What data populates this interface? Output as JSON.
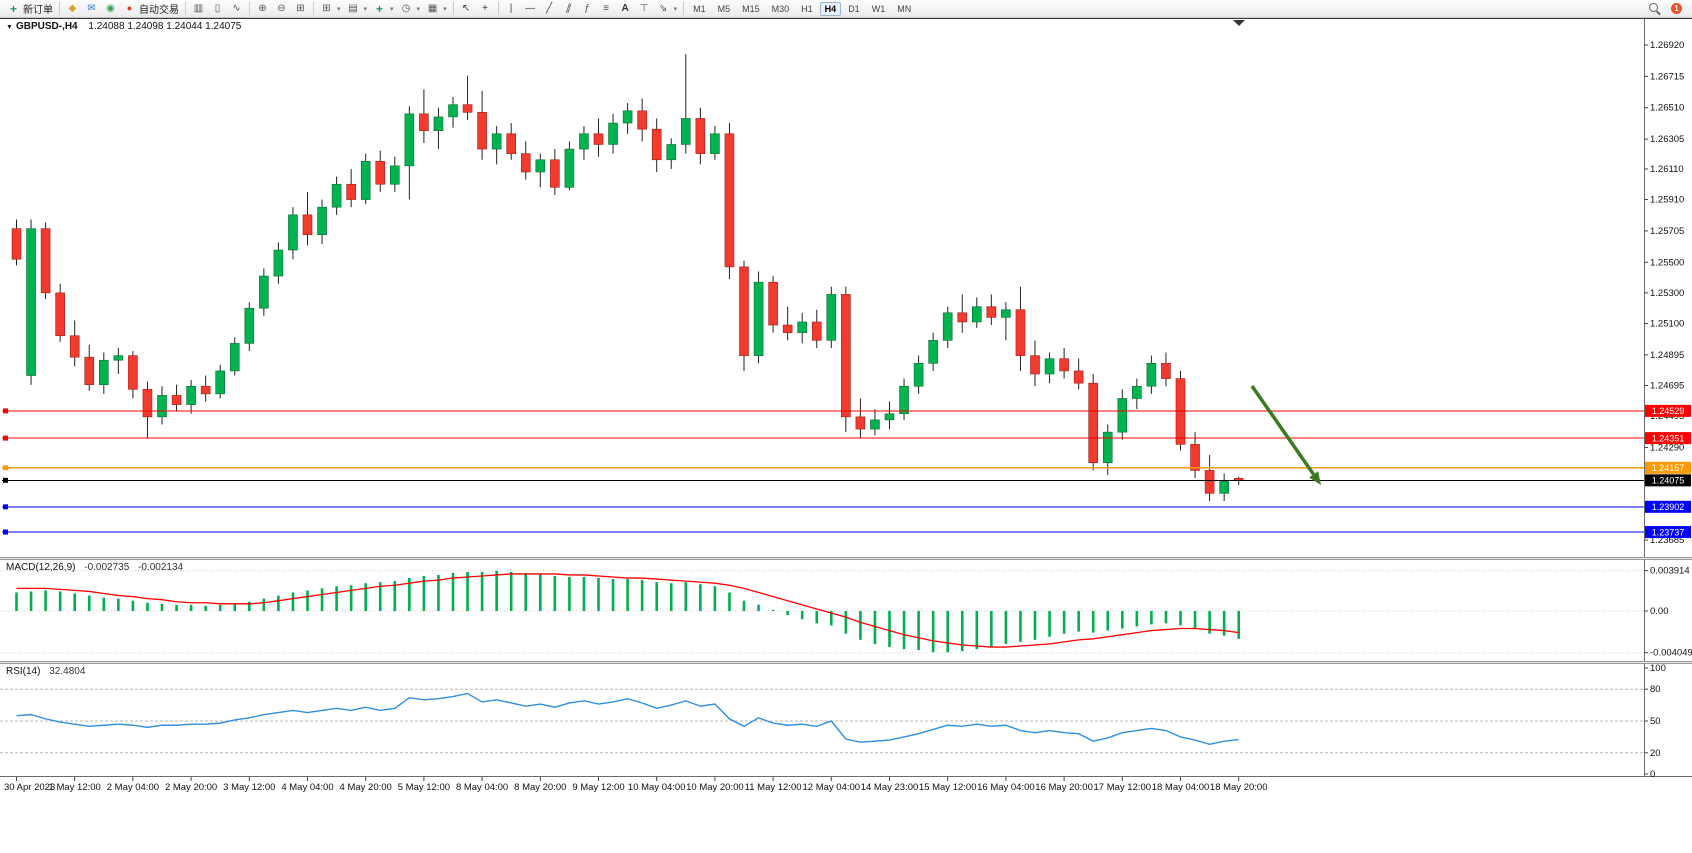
{
  "toolbar": {
    "new_order_label": "新订单",
    "auto_trading_label": "自动交易",
    "timeframes": [
      "M1",
      "M5",
      "M15",
      "M30",
      "H1",
      "H4",
      "D1",
      "W1",
      "MN"
    ],
    "active_timeframe": "H4",
    "notification_badge": "1",
    "items": [
      {
        "type": "button",
        "name": "new-order-button",
        "icon": "new-order-icon",
        "label": "新订单"
      },
      {
        "type": "sep"
      },
      {
        "type": "icon",
        "name": "market-watch-button",
        "icon": "diamond-icon"
      },
      {
        "type": "icon",
        "name": "chat-button",
        "icon": "chat-icon"
      },
      {
        "type": "icon",
        "name": "signals-button",
        "icon": "signal-icon"
      },
      {
        "type": "button",
        "name": "auto-trading-button",
        "icon": "autotrade-icon",
        "label": "自动交易"
      },
      {
        "type": "sep"
      },
      {
        "type": "icon",
        "name": "bar-chart-button",
        "icon": "bars-icon"
      },
      {
        "type": "icon",
        "name": "candlestick-chart-button",
        "icon": "candles-icon"
      },
      {
        "type": "icon",
        "name": "line-chart-button",
        "icon": "linechart-icon"
      },
      {
        "type": "sep"
      },
      {
        "type": "icon",
        "name": "zoom-in-button",
        "icon": "zoom-in-icon"
      },
      {
        "type": "icon",
        "name": "zoom-out-button",
        "icon": "zoom-out-icon"
      },
      {
        "type": "icon",
        "name": "tile-windows-button",
        "icon": "tile-icon"
      },
      {
        "type": "sep"
      },
      {
        "type": "icon",
        "name": "new-chart-button",
        "icon": "new-chart-icon",
        "dropdown": true
      },
      {
        "type": "icon",
        "name": "profiles-button",
        "icon": "profiles-icon",
        "dropdown": true
      },
      {
        "type": "icon",
        "name": "add-indicator-button",
        "icon": "plus-icon",
        "dropdown": true
      },
      {
        "type": "icon",
        "name": "periods-button",
        "icon": "clock-icon",
        "dropdown": true
      },
      {
        "type": "icon",
        "name": "templates-button",
        "icon": "template-icon",
        "dropdown": true
      },
      {
        "type": "sep"
      },
      {
        "type": "icon",
        "name": "cursor-button",
        "icon": "cursor-icon"
      },
      {
        "type": "icon",
        "name": "crosshair-button",
        "icon": "crosshair-icon"
      },
      {
        "type": "sep"
      },
      {
        "type": "icon",
        "name": "vertical-line-button",
        "icon": "vline-icon"
      },
      {
        "type": "icon",
        "name": "horizontal-line-button",
        "icon": "hline-icon"
      },
      {
        "type": "icon",
        "name": "trendline-button",
        "icon": "trendline-icon"
      },
      {
        "type": "icon",
        "name": "channel-button",
        "icon": "channel-icon"
      },
      {
        "type": "icon",
        "name": "fibonacci-button",
        "icon": "fibonacci-icon"
      },
      {
        "type": "icon",
        "name": "shapes-button",
        "icon": "shapes-icon"
      },
      {
        "type": "icon",
        "name": "text-button",
        "icon": "text-icon"
      },
      {
        "type": "icon",
        "name": "label-button",
        "icon": "label-icon"
      },
      {
        "type": "icon",
        "name": "arrows-button",
        "icon": "arrow-tool-icon",
        "dropdown": true
      },
      {
        "type": "sep"
      },
      {
        "type": "timeframes",
        "name": "timeframe-buttons"
      },
      {
        "type": "spacer"
      },
      {
        "type": "icon",
        "name": "search-button",
        "icon": "magnifier-icon"
      },
      {
        "type": "badge",
        "name": "notification-badge"
      }
    ]
  },
  "icons": {
    "new-order-icon": "+",
    "diamond-icon": "◆",
    "chat-icon": "✉",
    "signal-icon": "◉",
    "autotrade-icon": "●",
    "bars-icon": "▥",
    "candles-icon": "▯",
    "linechart-icon": "∿",
    "zoom-in-icon": "⊕",
    "zoom-out-icon": "⊖",
    "tile-icon": "⊞",
    "new-chart-icon": "⊞",
    "profiles-icon": "▤",
    "plus-icon": "+",
    "clock-icon": "◷",
    "template-icon": "▦",
    "cursor-icon": "↖",
    "crosshair-icon": "+",
    "vline-icon": "|",
    "hline-icon": "—",
    "trendline-icon": "╱",
    "channel-icon": "∥",
    "fibonacci-icon": "ƒ",
    "shapes-icon": "≡",
    "text-icon": "A",
    "label-icon": "⊤",
    "arrow-tool-icon": "⇘",
    "magnifier-icon": "",
    "dropdown-caret-icon": "▾",
    "collapse-icon": "▼",
    "shift-marker-icon": "▼"
  },
  "chart_data": {
    "type": "candlestick",
    "symbol": "GBPUSD-",
    "timeframe": "H4",
    "title_display": "GBPUSD-,H4",
    "ohlc_display": "1.24088 1.24098 1.24044 1.24075",
    "y_labels": [
      "1.26920",
      "1.26715",
      "1.26510",
      "1.26305",
      "1.26110",
      "1.25910",
      "1.25705",
      "1.25500",
      "1.25300",
      "1.25100",
      "1.24895",
      "1.24695",
      "1.24495",
      "1.24290",
      "1.24090",
      "1.23885",
      "1.23685"
    ],
    "x_labels": [
      "30 Apr 2023",
      "1 May 12:00",
      "2 May 04:00",
      "2 May 20:00",
      "3 May 12:00",
      "4 May 04:00",
      "4 May 20:00",
      "5 May 12:00",
      "8 May 04:00",
      "8 May 20:00",
      "9 May 12:00",
      "10 May 04:00",
      "10 May 20:00",
      "11 May 12:00",
      "12 May 04:00",
      "14 May 23:00",
      "15 May 12:00",
      "16 May 04:00",
      "16 May 20:00",
      "17 May 12:00",
      "18 May 04:00",
      "18 May 20:00"
    ],
    "colors": {
      "bull": "#00b250",
      "bear": "#f23b2e",
      "wick": "#222222",
      "bull_border": "#0a6e34",
      "bear_border": "#9e1f16"
    },
    "candles": [
      [
        1.2572,
        1.2578,
        1.2548,
        1.2552
      ],
      [
        1.2476,
        1.2578,
        1.247,
        1.2572
      ],
      [
        1.2572,
        1.2576,
        1.2526,
        1.253
      ],
      [
        1.253,
        1.2536,
        1.2498,
        1.2502
      ],
      [
        1.2502,
        1.2512,
        1.2482,
        1.2488
      ],
      [
        1.2488,
        1.2496,
        1.2466,
        1.247
      ],
      [
        1.247,
        1.2491,
        1.2464,
        1.2486
      ],
      [
        1.2486,
        1.2494,
        1.2477,
        1.2489
      ],
      [
        1.2489,
        1.2492,
        1.2461,
        1.2467
      ],
      [
        1.2467,
        1.2472,
        1.2435,
        1.2449
      ],
      [
        1.2449,
        1.2469,
        1.2444,
        1.2463
      ],
      [
        1.2463,
        1.247,
        1.2453,
        1.2457
      ],
      [
        1.2457,
        1.2473,
        1.2451,
        1.2469
      ],
      [
        1.2469,
        1.2476,
        1.2459,
        1.2464
      ],
      [
        1.2464,
        1.2483,
        1.2461,
        1.2479
      ],
      [
        1.2479,
        1.2501,
        1.2476,
        1.2497
      ],
      [
        1.2497,
        1.2524,
        1.2492,
        1.252
      ],
      [
        1.252,
        1.2546,
        1.2515,
        1.2541
      ],
      [
        1.2541,
        1.2563,
        1.2536,
        1.2558
      ],
      [
        1.2558,
        1.2586,
        1.2552,
        1.2581
      ],
      [
        1.2581,
        1.2596,
        1.2561,
        1.2568
      ],
      [
        1.2568,
        1.2591,
        1.2562,
        1.2586
      ],
      [
        1.2586,
        1.2606,
        1.2581,
        1.2601
      ],
      [
        1.2601,
        1.2611,
        1.2586,
        1.2591
      ],
      [
        1.2591,
        1.2621,
        1.2588,
        1.2616
      ],
      [
        1.2616,
        1.2623,
        1.2596,
        1.2601
      ],
      [
        1.2601,
        1.2619,
        1.2596,
        1.2613
      ],
      [
        1.2613,
        1.2652,
        1.2591,
        1.2647
      ],
      [
        1.2647,
        1.2663,
        1.2628,
        1.2636
      ],
      [
        1.2636,
        1.2651,
        1.2624,
        1.2645
      ],
      [
        1.2645,
        1.2658,
        1.2638,
        1.2653
      ],
      [
        1.2653,
        1.2672,
        1.2643,
        1.2648
      ],
      [
        1.2648,
        1.2662,
        1.2617,
        1.2624
      ],
      [
        1.2624,
        1.2639,
        1.2614,
        1.2634
      ],
      [
        1.2634,
        1.2641,
        1.2617,
        1.2621
      ],
      [
        1.2621,
        1.2629,
        1.2604,
        1.2609
      ],
      [
        1.2609,
        1.2621,
        1.2599,
        1.2617
      ],
      [
        1.2617,
        1.2624,
        1.2594,
        1.2599
      ],
      [
        1.2599,
        1.2629,
        1.2597,
        1.2624
      ],
      [
        1.2624,
        1.2639,
        1.2617,
        1.2634
      ],
      [
        1.2634,
        1.2644,
        1.2619,
        1.2627
      ],
      [
        1.2627,
        1.2647,
        1.2621,
        1.2641
      ],
      [
        1.2641,
        1.2654,
        1.2634,
        1.2649
      ],
      [
        1.2649,
        1.2657,
        1.2629,
        1.2637
      ],
      [
        1.2637,
        1.2644,
        1.2609,
        1.2617
      ],
      [
        1.2617,
        1.2631,
        1.2611,
        1.2627
      ],
      [
        1.2627,
        1.2686,
        1.2621,
        1.2644
      ],
      [
        1.2644,
        1.2651,
        1.2614,
        1.2621
      ],
      [
        1.2621,
        1.2639,
        1.2617,
        1.2634
      ],
      [
        1.2634,
        1.2641,
        1.2539,
        1.2547
      ],
      [
        1.2547,
        1.2551,
        1.2479,
        1.2489
      ],
      [
        1.2489,
        1.2544,
        1.2484,
        1.2537
      ],
      [
        1.2537,
        1.2541,
        1.2504,
        1.2509
      ],
      [
        1.2509,
        1.2521,
        1.2499,
        1.2504
      ],
      [
        1.2504,
        1.2517,
        1.2497,
        1.2511
      ],
      [
        1.2511,
        1.2519,
        1.2494,
        1.2499
      ],
      [
        1.2499,
        1.2534,
        1.2494,
        1.2529
      ],
      [
        1.2529,
        1.2534,
        1.2439,
        1.2449
      ],
      [
        1.2449,
        1.2461,
        1.2435,
        1.2441
      ],
      [
        1.2441,
        1.2454,
        1.2437,
        1.2447
      ],
      [
        1.2447,
        1.2459,
        1.2441,
        1.2451
      ],
      [
        1.2451,
        1.2474,
        1.2447,
        1.2469
      ],
      [
        1.2469,
        1.2489,
        1.2464,
        1.2484
      ],
      [
        1.2484,
        1.2504,
        1.2479,
        1.2499
      ],
      [
        1.2499,
        1.2521,
        1.2494,
        1.2517
      ],
      [
        1.2517,
        1.2529,
        1.2504,
        1.2511
      ],
      [
        1.2511,
        1.2527,
        1.2507,
        1.2521
      ],
      [
        1.2521,
        1.2529,
        1.2509,
        1.2514
      ],
      [
        1.2514,
        1.2524,
        1.2499,
        1.2519
      ],
      [
        1.2519,
        1.2534,
        1.2479,
        1.2489
      ],
      [
        1.2489,
        1.2499,
        1.2469,
        1.2477
      ],
      [
        1.2477,
        1.2491,
        1.2471,
        1.2487
      ],
      [
        1.2487,
        1.2494,
        1.2474,
        1.2479
      ],
      [
        1.2479,
        1.2487,
        1.2467,
        1.2471
      ],
      [
        1.2471,
        1.2477,
        1.2414,
        1.2419
      ],
      [
        1.2419,
        1.2444,
        1.2411,
        1.2439
      ],
      [
        1.2439,
        1.2467,
        1.2434,
        1.2461
      ],
      [
        1.2461,
        1.2474,
        1.2454,
        1.2469
      ],
      [
        1.2469,
        1.2489,
        1.2464,
        1.2484
      ],
      [
        1.2484,
        1.2491,
        1.2469,
        1.2474
      ],
      [
        1.2474,
        1.2479,
        1.2427,
        1.2431
      ],
      [
        1.2431,
        1.2439,
        1.2409,
        1.2414
      ],
      [
        1.2414,
        1.2424,
        1.2394,
        1.2399
      ],
      [
        1.2399,
        1.2412,
        1.2394,
        1.2407
      ],
      [
        1.24088,
        1.24098,
        1.24044,
        1.24075
      ]
    ],
    "hlines": [
      {
        "name": "resistance-line-1",
        "price": "1.24529",
        "value": 1.24529,
        "color": "#ff0000"
      },
      {
        "name": "resistance-line-2",
        "price": "1.24351",
        "value": 1.24351,
        "color": "#ff0000"
      },
      {
        "name": "orange-level-line",
        "price": "1.24157",
        "value": 1.24157,
        "color": "#ff9900"
      },
      {
        "name": "current-price-line",
        "price": "1.24075",
        "value": 1.24075,
        "color": "#000000"
      },
      {
        "name": "support-line-1",
        "price": "1.23902",
        "value": 1.23902,
        "color": "#0000ff"
      },
      {
        "name": "support-line-2",
        "price": "1.23737",
        "value": 1.23737,
        "color": "#0000ff"
      }
    ],
    "annotations": {
      "arrow": {
        "color": "#3c7a1e",
        "direction": "down-right"
      }
    },
    "indicators": {
      "macd": {
        "label": "MACD(12,26,9)",
        "value_main": "-0.002735",
        "value_signal": "-0.002134",
        "scale_labels": [
          "0.003914",
          "0.00",
          "-0.004049"
        ],
        "colors": {
          "histogram": "#00b050",
          "signal": "#ff0000"
        },
        "histogram": [
          0.0018,
          0.0019,
          0.002,
          0.0019,
          0.0017,
          0.0015,
          0.0013,
          0.0012,
          0.001,
          0.0008,
          0.0007,
          0.0006,
          0.0006,
          0.0005,
          0.0006,
          0.0007,
          0.0009,
          0.0012,
          0.0015,
          0.0018,
          0.002,
          0.0022,
          0.0024,
          0.0025,
          0.0027,
          0.0028,
          0.0029,
          0.0032,
          0.0034,
          0.0035,
          0.0037,
          0.0038,
          0.0038,
          0.0039,
          0.0038,
          0.0037,
          0.0036,
          0.0034,
          0.0033,
          0.0033,
          0.0032,
          0.0031,
          0.0031,
          0.003,
          0.0028,
          0.0027,
          0.0028,
          0.0026,
          0.0024,
          0.0018,
          0.001,
          0.0006,
          0.0001,
          -0.0004,
          -0.0008,
          -0.0012,
          -0.0014,
          -0.0022,
          -0.0028,
          -0.0032,
          -0.0035,
          -0.0037,
          -0.0038,
          -0.004,
          -0.004,
          -0.0039,
          -0.0037,
          -0.0035,
          -0.0032,
          -0.003,
          -0.0028,
          -0.0025,
          -0.0022,
          -0.002,
          -0.0021,
          -0.0019,
          -0.0017,
          -0.0015,
          -0.0013,
          -0.0012,
          -0.0014,
          -0.0017,
          -0.0022,
          -0.0024,
          -0.0027
        ],
        "signal": [
          0.0022,
          0.0022,
          0.0022,
          0.0021,
          0.002,
          0.0019,
          0.0017,
          0.0015,
          0.0014,
          0.0012,
          0.0011,
          0.0009,
          0.0008,
          0.0008,
          0.0007,
          0.0007,
          0.0007,
          0.0008,
          0.001,
          0.0012,
          0.0014,
          0.0016,
          0.0018,
          0.002,
          0.0022,
          0.0024,
          0.0025,
          0.0027,
          0.0029,
          0.003,
          0.0032,
          0.0033,
          0.0034,
          0.0035,
          0.0036,
          0.0036,
          0.0036,
          0.0036,
          0.0035,
          0.0035,
          0.0034,
          0.0033,
          0.0032,
          0.0032,
          0.0031,
          0.003,
          0.0029,
          0.0028,
          0.0027,
          0.0025,
          0.0022,
          0.0018,
          0.0014,
          0.001,
          0.0006,
          0.0002,
          -0.0002,
          -0.0006,
          -0.0011,
          -0.0015,
          -0.0019,
          -0.0023,
          -0.0026,
          -0.0029,
          -0.0031,
          -0.0033,
          -0.0034,
          -0.0035,
          -0.0035,
          -0.0034,
          -0.0033,
          -0.0032,
          -0.003,
          -0.0028,
          -0.0027,
          -0.0025,
          -0.0023,
          -0.0021,
          -0.0019,
          -0.0018,
          -0.0017,
          -0.0017,
          -0.0018,
          -0.0019,
          -0.0021
        ]
      },
      "rsi": {
        "label": "RSI(14)",
        "value": "32.4804",
        "scale_labels": [
          "100",
          "80",
          "50",
          "20",
          "0"
        ],
        "levels": [
          80,
          50,
          20
        ],
        "color": "#2f8fdd",
        "values": [
          55,
          56,
          52,
          49,
          47,
          45,
          46,
          47,
          46,
          44,
          46,
          46,
          47,
          47,
          48,
          51,
          53,
          56,
          58,
          60,
          58,
          60,
          62,
          60,
          63,
          60,
          62,
          72,
          70,
          71,
          73,
          76,
          68,
          70,
          67,
          64,
          66,
          63,
          67,
          69,
          66,
          68,
          71,
          67,
          62,
          65,
          69,
          64,
          66,
          52,
          45,
          53,
          48,
          46,
          47,
          45,
          50,
          33,
          30,
          31,
          32,
          35,
          38,
          42,
          46,
          45,
          47,
          45,
          46,
          41,
          39,
          41,
          39,
          38,
          31,
          34,
          39,
          41,
          43,
          41,
          35,
          32,
          28,
          31,
          32.48
        ]
      }
    }
  }
}
